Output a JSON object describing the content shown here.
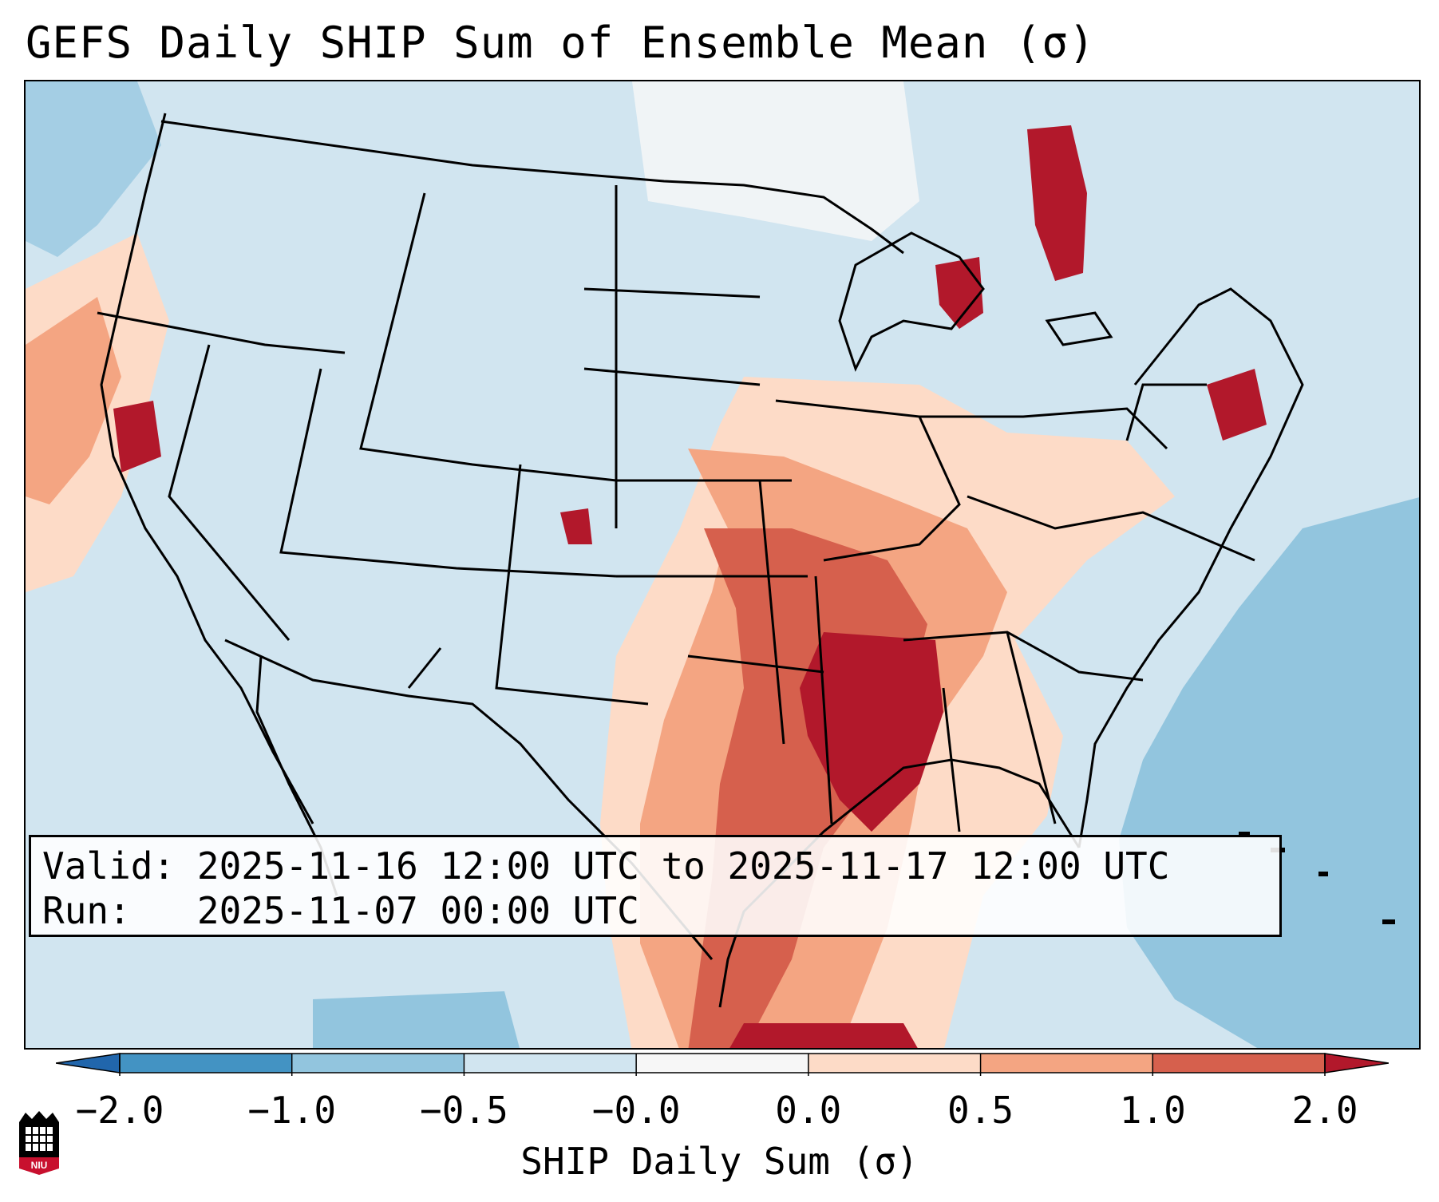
{
  "title": "GEFS Daily SHIP Sum of Ensemble Mean (σ)",
  "info": {
    "valid_label": "Valid:",
    "valid_text": "2025-11-16 12:00 UTC to 2025-11-17 12:00 UTC",
    "run_label": "Run:",
    "run_text": "2025-11-07 00:00 UTC"
  },
  "colorbar": {
    "label": "SHIP Daily Sum (σ)",
    "ticks": [
      "−2.0",
      "−1.0",
      "−0.5",
      "−0.0",
      "0.0",
      "0.5",
      "1.0",
      "2.0"
    ],
    "colors": [
      "#2166ac",
      "#4393c3",
      "#92c5de",
      "#d1e5f0",
      "#f7f7f7",
      "#fddbc7",
      "#f4a582",
      "#d6604d",
      "#b2182b"
    ]
  },
  "logo": {
    "text": "NIU",
    "name": "Northern Illinois University"
  },
  "map": {
    "region": "Contiguous United States",
    "background_color": "#d1e5f0",
    "features": [
      "coastlines",
      "state borders",
      "country borders",
      "Great Lakes"
    ],
    "shaded_areas": [
      {
        "region": "Mississippi Valley / Lower Mississippi",
        "category": "high",
        "color": "#b2182b"
      },
      {
        "region": "Gulf Coast / western Gulf of Mexico",
        "category": "moderate",
        "color": "#d6604d"
      },
      {
        "region": "Ohio Valley / Midwest",
        "category": "low",
        "color": "#f4a582"
      },
      {
        "region": "Northern California coast",
        "category": "low",
        "color": "#f4a582"
      },
      {
        "region": "Western Atlantic",
        "category": "negative",
        "color": "#92c5de"
      },
      {
        "region": "Ontario / Quebec",
        "category": "high",
        "color": "#b2182b"
      }
    ]
  }
}
